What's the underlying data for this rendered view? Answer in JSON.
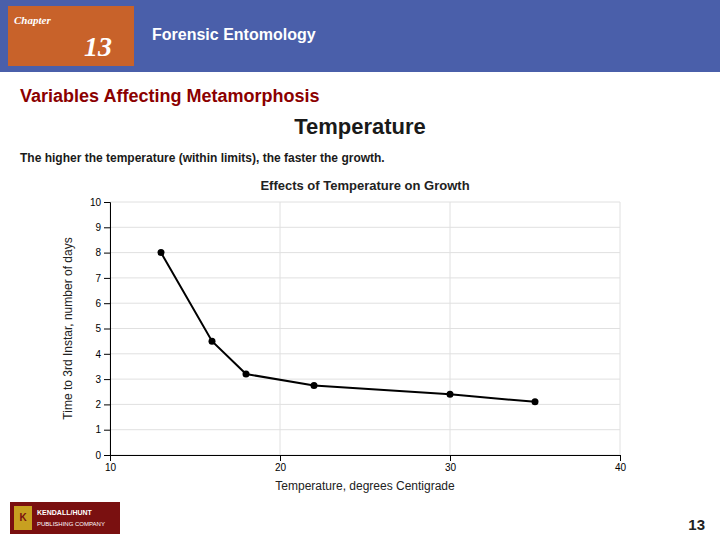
{
  "page": {
    "header": "Forensic Entomology",
    "header_color": "#4a5faa",
    "chapter_label": "Chapter",
    "chapter_number": "13",
    "chapter_box_color": "#c8622a",
    "title": "Variables Affecting Metamorphosis",
    "title_color": "#8b0000",
    "heading": "Temperature",
    "subtitle": "The higher the temperature (within limits), the faster the growth.",
    "page_number": "13",
    "logo_letter": "K",
    "publisher": "KENDALL/HUNT",
    "publisher_line": "PUBLISHING COMPANY"
  },
  "chart_data": {
    "type": "line",
    "title": "Effects of Temperature on Growth",
    "x_label": "Temperature, degrees Centigrade",
    "y_label": "Time to 3rd Instar, number of days",
    "x": [
      13,
      16,
      18,
      22,
      30,
      35
    ],
    "values": [
      8.0,
      4.5,
      3.2,
      2.75,
      2.4,
      2.1
    ],
    "color": "#000000",
    "marker": "circle",
    "xlim": [
      10,
      40
    ],
    "ylim": [
      0,
      10
    ],
    "xticks": [
      10,
      20,
      30,
      40
    ],
    "yticks": [
      0,
      1,
      2,
      3,
      4,
      5,
      6,
      7,
      8,
      9,
      10
    ],
    "grid": true
  }
}
